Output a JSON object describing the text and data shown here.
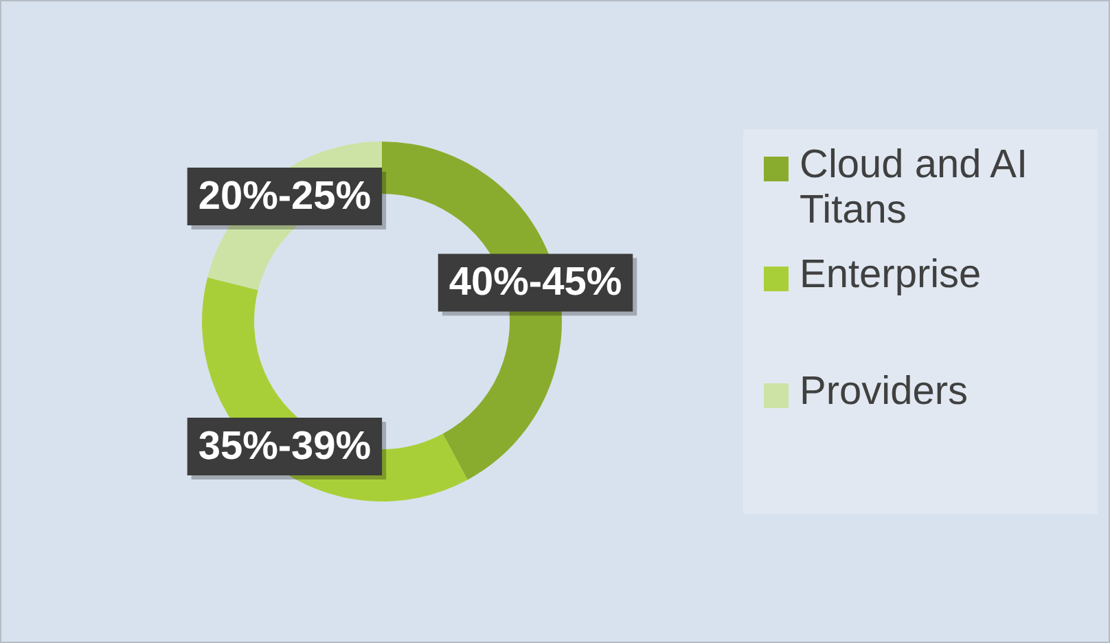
{
  "chart_data": {
    "type": "donut",
    "categories": [
      "Cloud and AI Titans",
      "Enterprise",
      "Providers"
    ],
    "values": [
      40,
      35,
      20
    ],
    "colors": [
      "#8aac2e",
      "#a9cf38",
      "#cde3a6"
    ],
    "value_labels": [
      "40%-45%",
      "35%-39%",
      "20%-25%"
    ],
    "legend": "right"
  }
}
